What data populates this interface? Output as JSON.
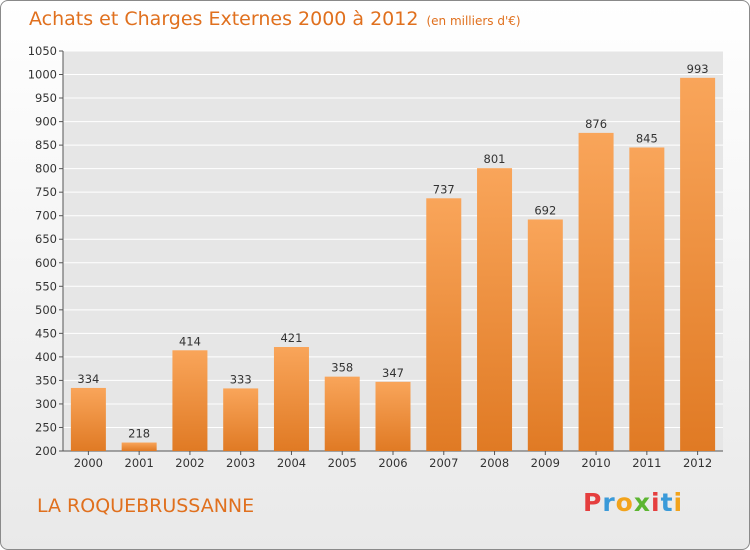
{
  "header": {
    "title": "Achats et Charges Externes 2000 à 2012",
    "unit": "(en milliers d'€)"
  },
  "footer": {
    "commune": "LA ROQUEBRUSSANNE",
    "logo_text": "Proxiti",
    "logo_letters": [
      {
        "ch": "P",
        "color": "#e53e3e"
      },
      {
        "ch": "r",
        "color": "#3a9ad9"
      },
      {
        "ch": "o",
        "color": "#f2a31b"
      },
      {
        "ch": "x",
        "color": "#5cb531"
      },
      {
        "ch": "i",
        "color": "#e53e3e"
      },
      {
        "ch": "t",
        "color": "#3a9ad9"
      },
      {
        "ch": "i",
        "color": "#f2a31b"
      }
    ]
  },
  "colors": {
    "accent": "#e0701e",
    "bar_top": "#f9a55a",
    "bar_bottom": "#e07a24",
    "plot_bg": "#e6e6e6",
    "grid": "#ffffff"
  },
  "chart_data": {
    "type": "bar",
    "categories": [
      "2000",
      "2001",
      "2002",
      "2003",
      "2004",
      "2005",
      "2006",
      "2007",
      "2008",
      "2009",
      "2010",
      "2011",
      "2012"
    ],
    "values": [
      334,
      218,
      414,
      333,
      421,
      358,
      347,
      737,
      801,
      692,
      876,
      845,
      993
    ],
    "data_labels": [
      "334",
      "218",
      "414",
      "333",
      "421",
      "358",
      "347",
      "737",
      "801",
      "692",
      "876",
      "845",
      "993"
    ],
    "title": "Achats et Charges Externes 2000 à 2012",
    "unit": "(en milliers d'€)",
    "ylim": [
      200,
      1050
    ],
    "yticks": [
      200,
      250,
      300,
      350,
      400,
      450,
      500,
      550,
      600,
      650,
      700,
      750,
      800,
      850,
      900,
      950,
      1000,
      1050
    ],
    "grid": true,
    "legend": "none"
  }
}
